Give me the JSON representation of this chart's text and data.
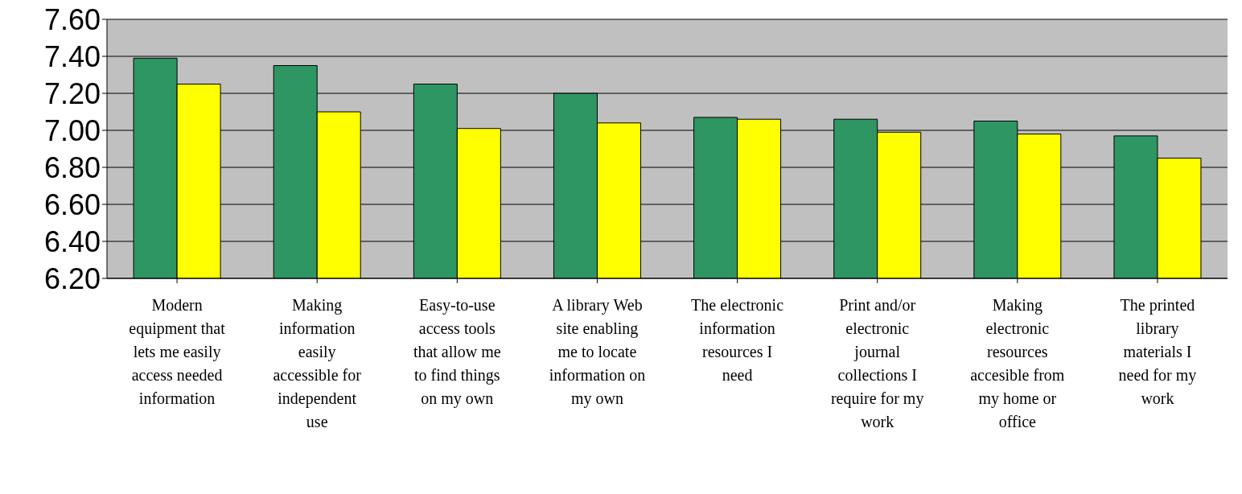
{
  "chart_data": {
    "type": "bar",
    "categories": [
      "Modern equipment that lets me easily access needed information",
      "Making information easily accessible for independent use",
      "Easy-to-use access tools that allow me to find things on my own",
      "A library Web site enabling me to locate information on my own",
      "The electronic information resources I need",
      "Print and/or electronic journal collections I require for my work",
      "Making electronic resources accesible from my home or office",
      "The printed library materials I need for my work"
    ],
    "series": [
      {
        "color": "#2e9662",
        "values": [
          7.39,
          7.35,
          7.25,
          7.2,
          7.07,
          7.06,
          7.05,
          6.97
        ]
      },
      {
        "color": "#ffff00",
        "values": [
          7.25,
          7.1,
          7.01,
          7.04,
          7.06,
          6.99,
          6.98,
          6.85
        ]
      }
    ],
    "ylim": [
      6.2,
      7.6
    ],
    "yticks": [
      {
        "value": 6.2,
        "label": "6.20"
      },
      {
        "value": 6.4,
        "label": "6.40"
      },
      {
        "value": 6.6,
        "label": "6.60"
      },
      {
        "value": 6.8,
        "label": "6.80"
      },
      {
        "value": 7.0,
        "label": "7.00"
      },
      {
        "value": 7.2,
        "label": "7.20"
      },
      {
        "value": 7.4,
        "label": "7.40"
      },
      {
        "value": 7.6,
        "label": "7.60"
      }
    ],
    "grid": "y"
  }
}
